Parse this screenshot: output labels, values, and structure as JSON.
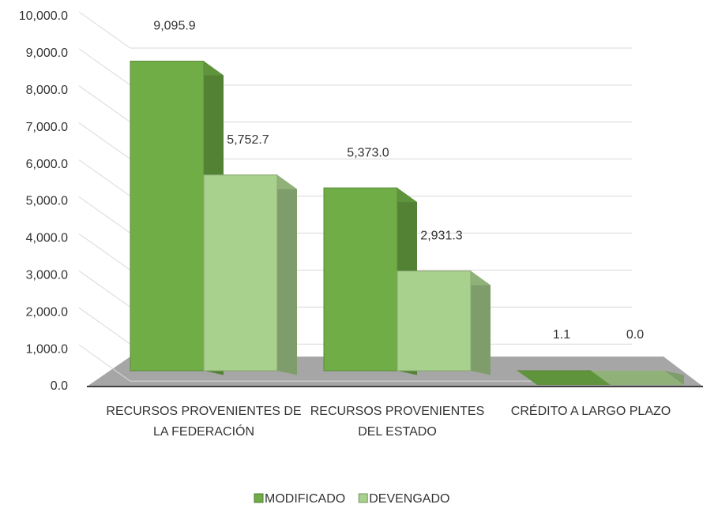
{
  "chart_data": {
    "type": "bar3d",
    "categories": [
      "RECURSOS PROVENIENTES DE LA FEDERACIÓN",
      "RECURSOS PROVENIENTES DEL ESTADO",
      "CRÉDITO A LARGO PLAZO"
    ],
    "series": [
      {
        "name": "MODIFICADO",
        "color": "#70ad47",
        "values": [
          9095.9,
          5373.0,
          1.1
        ],
        "value_labels": [
          "9,095.9",
          "5,373.0",
          "1.1"
        ]
      },
      {
        "name": "DEVENGADO",
        "color": "#a9d18e",
        "values": [
          5752.7,
          2931.3,
          0.0
        ],
        "value_labels": [
          "5,752.7",
          "2,931.3",
          "0.0"
        ]
      }
    ],
    "ylim": [
      0,
      10000
    ],
    "yticks": [
      {
        "value": 0,
        "label": "0.0"
      },
      {
        "value": 1000,
        "label": "1,000.0"
      },
      {
        "value": 2000,
        "label": "2,000.0"
      },
      {
        "value": 3000,
        "label": "3,000.0"
      },
      {
        "value": 4000,
        "label": "4,000.0"
      },
      {
        "value": 5000,
        "label": "5,000.0"
      },
      {
        "value": 6000,
        "label": "6,000.0"
      },
      {
        "value": 7000,
        "label": "7,000.0"
      },
      {
        "value": 8000,
        "label": "8,000.0"
      },
      {
        "value": 9000,
        "label": "9,000.0"
      },
      {
        "value": 10000,
        "label": "10,000.0"
      }
    ],
    "grid": true,
    "legend": "bottom"
  }
}
